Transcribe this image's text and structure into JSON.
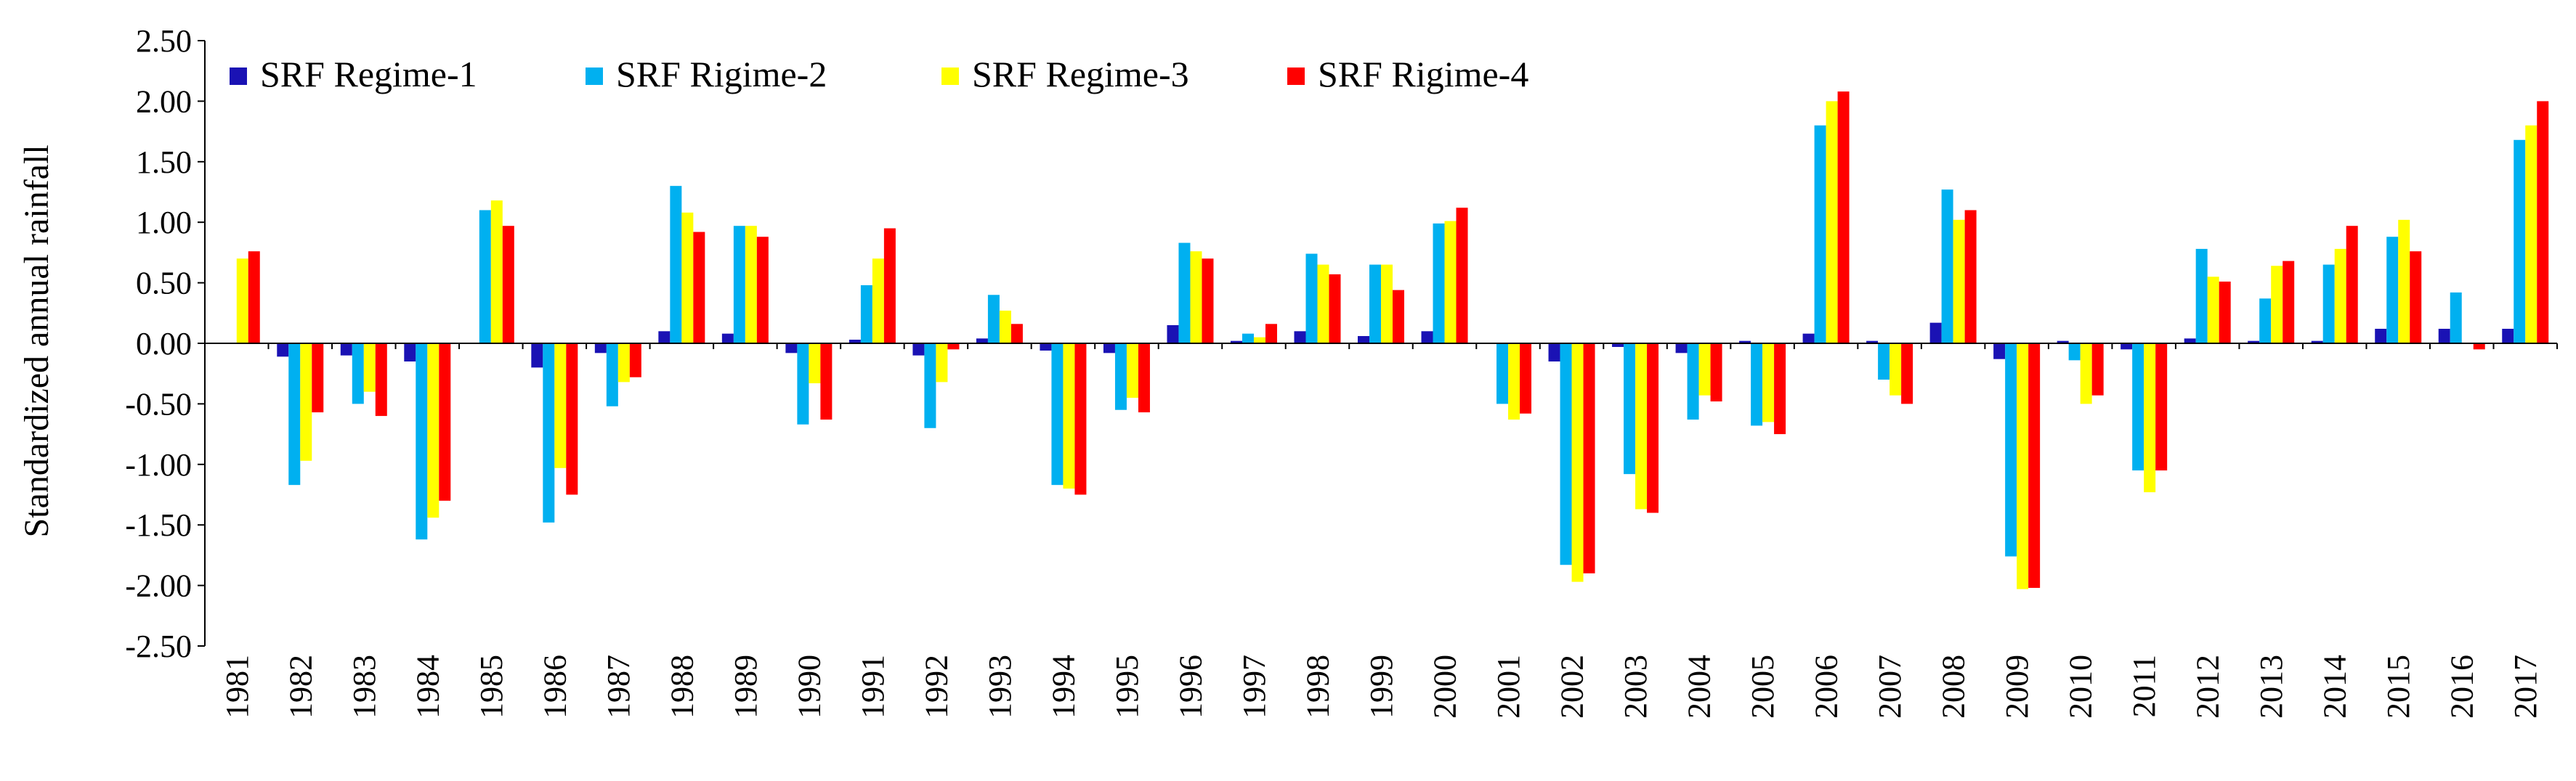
{
  "chart_data": {
    "type": "bar",
    "ylabel": "Standardized annual rainfall",
    "ylim": [
      -2.5,
      2.5
    ],
    "yticks": [
      2.5,
      2.0,
      1.5,
      1.0,
      0.5,
      0.0,
      -0.5,
      -1.0,
      -1.5,
      -2.0,
      -2.5
    ],
    "ytick_labels": [
      "2.50",
      "2.00",
      "1.50",
      "1.00",
      "0.50",
      "0.00",
      "-0.50",
      "-1.00",
      "-1.50",
      "-2.00",
      "-2.50"
    ],
    "grid": false,
    "legend_position": "top-left",
    "categories": [
      "1981",
      "1982",
      "1983",
      "1984",
      "1985",
      "1986",
      "1987",
      "1988",
      "1989",
      "1990",
      "1991",
      "1992",
      "1993",
      "1994",
      "1995",
      "1996",
      "1997",
      "1998",
      "1999",
      "2000",
      "2001",
      "2002",
      "2003",
      "2004",
      "2005",
      "2006",
      "2007",
      "2008",
      "2009",
      "2010",
      "2011",
      "2012",
      "2013",
      "2014",
      "2015",
      "2016",
      "2017"
    ],
    "series": [
      {
        "name": "SRF Regime-1",
        "color": "#1a12b4",
        "values": [
          0.0,
          -0.11,
          -0.1,
          -0.15,
          0.0,
          -0.2,
          -0.08,
          0.1,
          0.08,
          -0.08,
          0.03,
          -0.1,
          0.04,
          -0.06,
          -0.08,
          0.15,
          0.02,
          0.1,
          0.06,
          0.1,
          0.0,
          -0.15,
          -0.03,
          -0.08,
          0.02,
          0.08,
          0.02,
          0.17,
          -0.13,
          0.02,
          -0.05,
          0.04,
          0.02,
          0.02,
          0.12,
          0.12,
          0.12
        ]
      },
      {
        "name": "SRF Rigime-2",
        "color": "#00b0f0",
        "values": [
          0.0,
          -1.17,
          -0.5,
          -1.62,
          1.1,
          -1.48,
          -0.52,
          1.3,
          0.97,
          -0.67,
          0.48,
          -0.7,
          0.4,
          -1.17,
          -0.55,
          0.83,
          0.08,
          0.74,
          0.65,
          0.99,
          -0.5,
          -1.83,
          -1.08,
          -0.63,
          -0.68,
          1.8,
          -0.3,
          1.27,
          -1.76,
          -0.14,
          -1.05,
          0.78,
          0.37,
          0.65,
          0.88,
          0.42,
          1.68
        ]
      },
      {
        "name": "SRF Regime-3",
        "color": "#ffff00",
        "values": [
          0.7,
          -0.97,
          -0.4,
          -1.44,
          1.18,
          -1.03,
          -0.32,
          1.08,
          0.97,
          -0.33,
          0.7,
          -0.32,
          0.27,
          -1.2,
          -0.45,
          0.76,
          0.05,
          0.65,
          0.65,
          1.01,
          -0.63,
          -1.97,
          -1.37,
          -0.43,
          -0.65,
          2.0,
          -0.43,
          1.02,
          -2.03,
          -0.5,
          -1.23,
          0.55,
          0.64,
          0.78,
          1.02,
          0.0,
          1.8
        ]
      },
      {
        "name": "SRF Rigime-4",
        "color": "#ff0000",
        "values": [
          0.76,
          -0.57,
          -0.6,
          -1.3,
          0.97,
          -1.25,
          -0.28,
          0.92,
          0.88,
          -0.63,
          0.95,
          -0.05,
          0.16,
          -1.25,
          -0.57,
          0.7,
          0.16,
          0.57,
          0.44,
          1.12,
          -0.58,
          -1.9,
          -1.4,
          -0.48,
          -0.75,
          2.08,
          -0.5,
          1.1,
          -2.02,
          -0.43,
          -1.05,
          0.51,
          0.68,
          0.97,
          0.76,
          -0.05,
          2.0
        ]
      }
    ]
  }
}
